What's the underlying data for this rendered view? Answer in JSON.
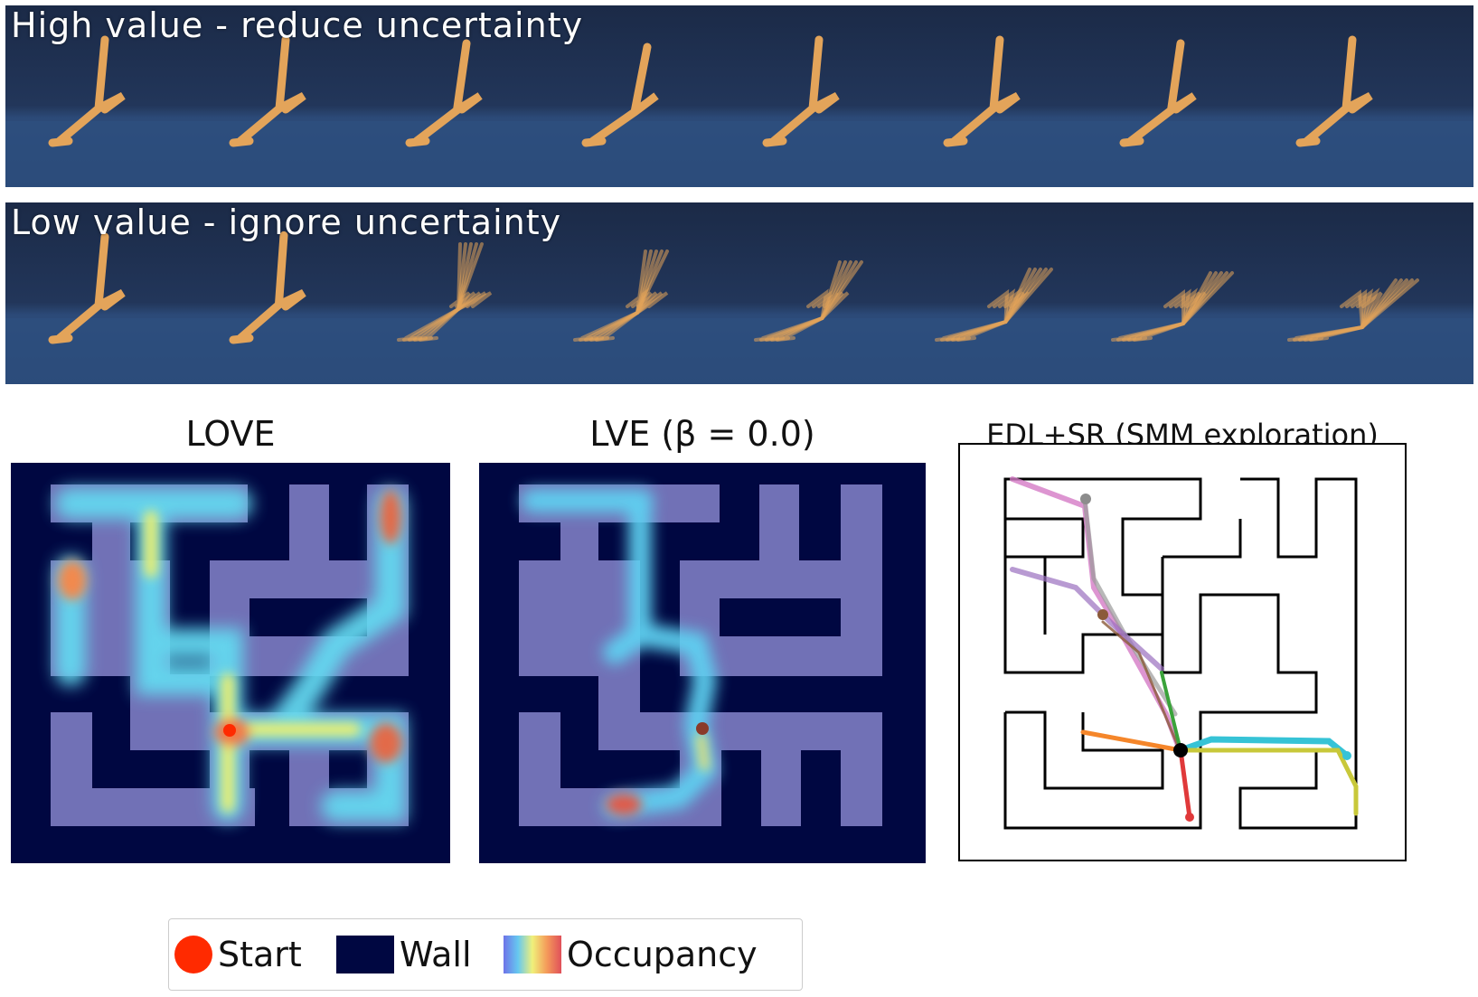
{
  "strips": {
    "top": {
      "title": "High value - reduce uncertainty"
    },
    "bottom": {
      "title": "Low value - ignore uncertainty"
    }
  },
  "panels": {
    "love": {
      "title": "LOVE"
    },
    "lve": {
      "title": "LVE (β = 0.0)"
    },
    "edl": {
      "title": "EDL+SR (SMM exploration)"
    }
  },
  "legend": {
    "start_label": "Start",
    "wall_label": "Wall",
    "occupancy_label": "Occupancy"
  },
  "colors": {
    "wall": "#000741",
    "floor": "#7171b6",
    "start": "#ff2a00",
    "strip_bg": "#22365a",
    "walker": "#e3a45a"
  }
}
